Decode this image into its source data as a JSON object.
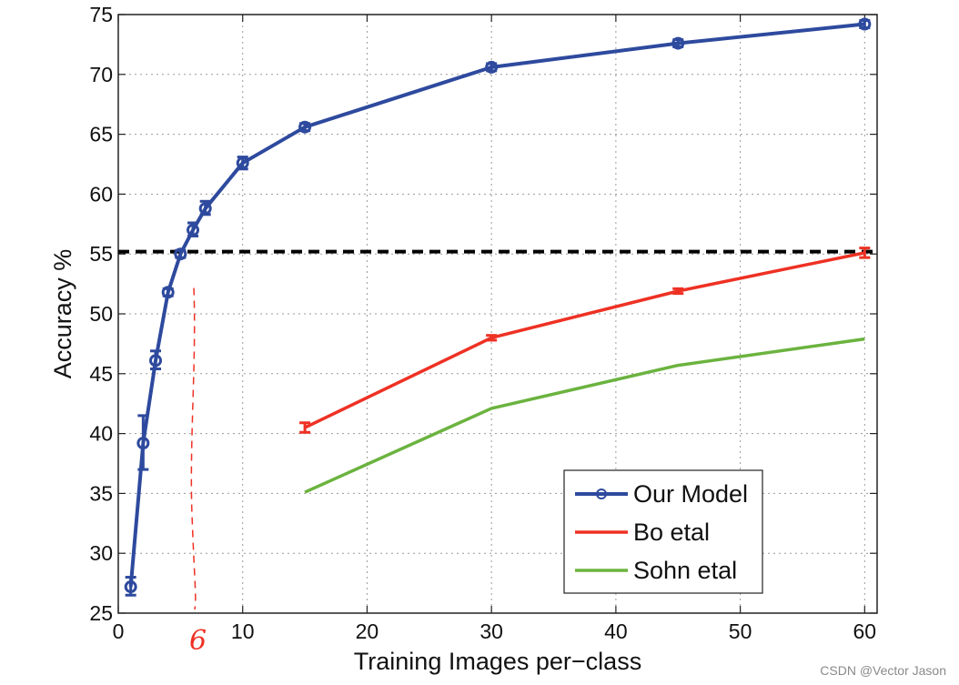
{
  "chart_data": {
    "type": "line",
    "title": "",
    "xlabel": "Training Images per−class",
    "ylabel": "Accuracy %",
    "xlim": [
      0,
      61
    ],
    "ylim": [
      25,
      75
    ],
    "grid": true,
    "legend_position": "bottom-right",
    "x_ticks": [
      "0",
      "10",
      "20",
      "30",
      "40",
      "50",
      "60"
    ],
    "y_ticks": [
      "25",
      "30",
      "35",
      "40",
      "45",
      "50",
      "55",
      "60",
      "65",
      "70",
      "75"
    ],
    "series": [
      {
        "name": "Our Model",
        "color": "#2e4a9e",
        "marker": "circle",
        "points": [
          {
            "x": 1,
            "y": 27.2,
            "lo": 26.5,
            "hi": 28.0
          },
          {
            "x": 2,
            "y": 39.2,
            "lo": 37.0,
            "hi": 41.5
          },
          {
            "x": 3,
            "y": 46.1,
            "lo": 45.4,
            "hi": 46.9
          },
          {
            "x": 4,
            "y": 51.8,
            "lo": 51.5,
            "hi": 52.1
          },
          {
            "x": 5,
            "y": 55.0,
            "lo": 54.7,
            "hi": 55.3
          },
          {
            "x": 6,
            "y": 57.0,
            "lo": 56.5,
            "hi": 57.6
          },
          {
            "x": 7,
            "y": 58.8,
            "lo": 58.3,
            "hi": 59.4
          },
          {
            "x": 10,
            "y": 62.6,
            "lo": 62.1,
            "hi": 63.1
          },
          {
            "x": 15,
            "y": 65.6,
            "lo": 65.3,
            "hi": 65.9
          },
          {
            "x": 30,
            "y": 70.6,
            "lo": 70.3,
            "hi": 70.9
          },
          {
            "x": 45,
            "y": 72.6,
            "lo": 72.3,
            "hi": 72.9
          },
          {
            "x": 60,
            "y": 74.2,
            "lo": 73.9,
            "hi": 74.5
          }
        ]
      },
      {
        "name": "Bo etal",
        "color": "#ee3124",
        "marker": "none",
        "points": [
          {
            "x": 15,
            "y": 40.5,
            "lo": 40.1,
            "hi": 40.9
          },
          {
            "x": 30,
            "y": 48.0,
            "lo": 47.8,
            "hi": 48.2
          },
          {
            "x": 45,
            "y": 51.9,
            "lo": 51.7,
            "hi": 52.1
          },
          {
            "x": 60,
            "y": 55.1,
            "lo": 54.7,
            "hi": 55.5
          }
        ]
      },
      {
        "name": "Sohn etal",
        "color": "#6bb33f",
        "marker": "none",
        "points": [
          {
            "x": 15,
            "y": 35.1
          },
          {
            "x": 30,
            "y": 42.1
          },
          {
            "x": 45,
            "y": 45.7
          },
          {
            "x": 60,
            "y": 47.9
          }
        ]
      }
    ],
    "reference_line": {
      "y": 55.2,
      "color": "#000000",
      "style": "dashed"
    },
    "annotation": {
      "text": "6",
      "x": 6,
      "color": "#ee3124",
      "style": "handwritten"
    }
  },
  "watermark": "CSDN @Vector Jason"
}
